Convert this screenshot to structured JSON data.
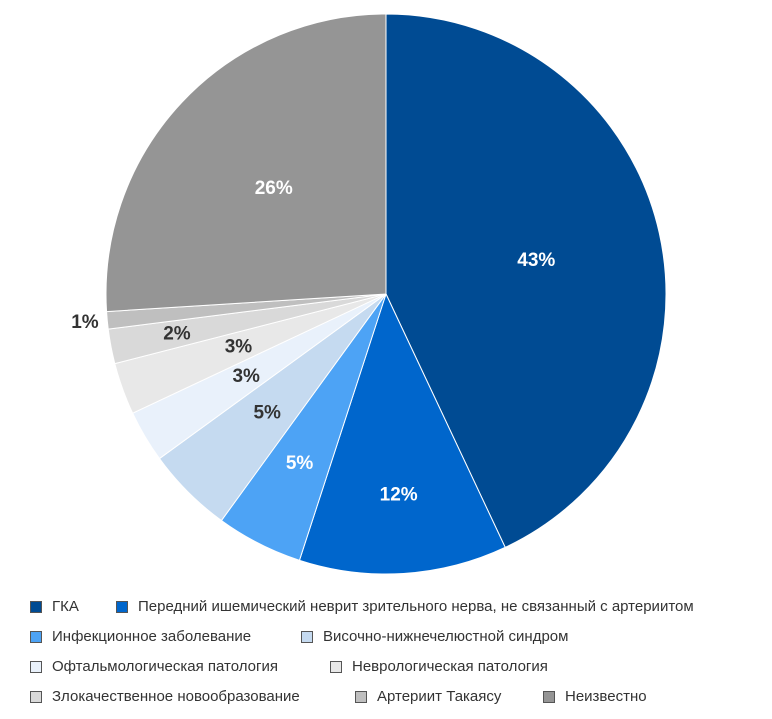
{
  "chart_data": {
    "type": "pie",
    "title": "",
    "slices": [
      {
        "label": "ГКА",
        "value": 43,
        "display": "43%",
        "color": "#004B93",
        "label_color": "#ffffff"
      },
      {
        "label": "Передний ишемический неврит зрительного нерва, не связанный с артериитом",
        "value": 12,
        "display": "12%",
        "color": "#0066CC",
        "label_color": "#ffffff"
      },
      {
        "label": "Инфекционное заболевание",
        "value": 5,
        "display": "5%",
        "color": "#4DA3F5",
        "label_color": "#ffffff"
      },
      {
        "label": "Височно-нижнечелюстной синдром",
        "value": 5,
        "display": "5%",
        "color": "#C5DAF0",
        "label_color": "#333333"
      },
      {
        "label": "Офтальмологическая патология",
        "value": 3,
        "display": "3%",
        "color": "#E9F1FB",
        "label_color": "#333333"
      },
      {
        "label": "Неврологическая патология",
        "value": 3,
        "display": "3%",
        "color": "#E8E8E8",
        "label_color": "#333333"
      },
      {
        "label": "Злокачественное новообразование",
        "value": 2,
        "display": "2%",
        "color": "#D9D9D9",
        "label_color": "#333333"
      },
      {
        "label": "Артериит Такаясу",
        "value": 1,
        "display": "1%",
        "color": "#BFBFBF",
        "label_color": "#333333"
      },
      {
        "label": "Неизвестно",
        "value": 26,
        "display": "26%",
        "color": "#959595",
        "label_color": "#ffffff"
      }
    ],
    "legend_position": "bottom",
    "start_angle_deg": 0,
    "direction": "clockwise"
  }
}
